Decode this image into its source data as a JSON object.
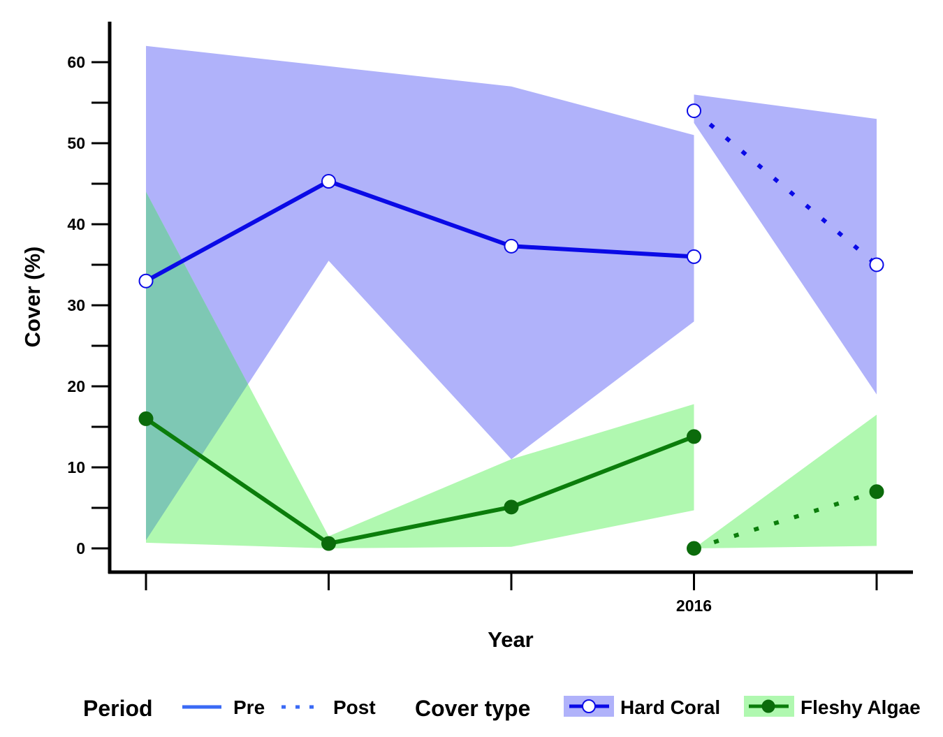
{
  "chart_data": {
    "type": "line",
    "xlabel": "Year",
    "ylabel": "Cover (%)",
    "x_tick_labels": [
      "",
      "",
      "",
      "2016",
      ""
    ],
    "y_ticks": [
      0,
      10,
      20,
      30,
      40,
      50,
      60
    ],
    "ylim": [
      -3,
      65
    ],
    "grid": false,
    "legend_position": "bottom",
    "legend": {
      "period_title": "Period",
      "period_items": [
        "Pre",
        "Post"
      ],
      "cover_title": "Cover type",
      "cover_items": [
        "Hard Coral",
        "Fleshy Algae"
      ]
    },
    "colors": {
      "hard_coral_line": "#0a0ae6",
      "hard_coral_band": "#b0b2fa",
      "fleshy_algae_line": "#0b7d0b",
      "fleshy_algae_band": "#b0f8b0",
      "overlap_band": "#7ec8b4",
      "legend_line": "#3a6af5"
    },
    "series": [
      {
        "name": "Hard Coral",
        "period": "Pre",
        "x": [
          1,
          2,
          3,
          4
        ],
        "y": [
          33,
          45.3,
          37.3,
          36
        ],
        "lower": [
          1,
          35.5,
          11,
          28
        ],
        "upper": [
          62,
          59.5,
          57,
          51
        ]
      },
      {
        "name": "Hard Coral",
        "period": "Post",
        "x": [
          4,
          5
        ],
        "y": [
          54,
          35
        ],
        "lower": [
          52.5,
          19
        ],
        "upper": [
          56,
          53
        ]
      },
      {
        "name": "Fleshy Algae",
        "period": "Pre",
        "x": [
          1,
          2,
          3,
          4
        ],
        "y": [
          16,
          0.6,
          5.1,
          13.8
        ],
        "lower": [
          0.7,
          0,
          0.2,
          4.7
        ],
        "upper": [
          44,
          1.5,
          11,
          17.8
        ]
      },
      {
        "name": "Fleshy Algae",
        "period": "Post",
        "x": [
          4,
          5
        ],
        "y": [
          0,
          7
        ],
        "lower": [
          0,
          0.3
        ],
        "upper": [
          0,
          16.5
        ]
      }
    ]
  }
}
